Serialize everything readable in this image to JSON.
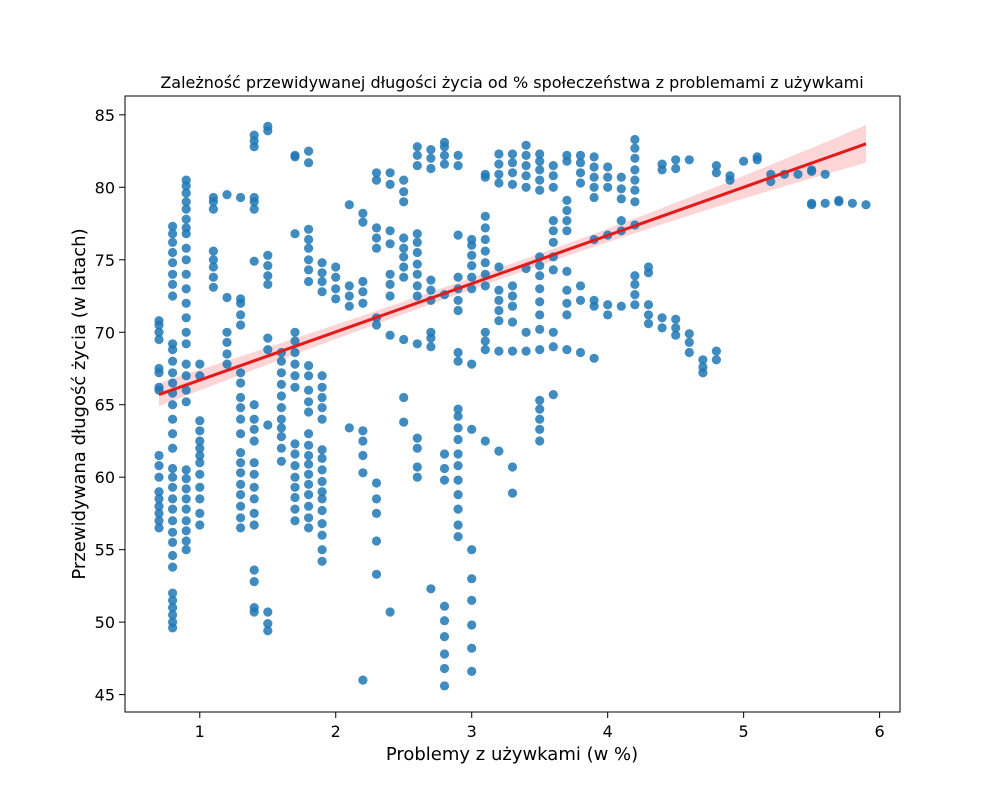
{
  "chart_data": {
    "type": "scatter",
    "title": "Zależność przewidywanej długości życia od % społeczeństwa z problemami z używkami",
    "xlabel": "Problemy z używkami (w %)",
    "ylabel": "Przewidywana długość życia (w latach)",
    "xlim": [
      0.45,
      6.15
    ],
    "ylim": [
      43.8,
      86.3
    ],
    "xticks": [
      1,
      2,
      3,
      4,
      5,
      6
    ],
    "yticks": [
      45,
      50,
      55,
      60,
      65,
      70,
      75,
      80,
      85
    ],
    "grid": false,
    "colors": {
      "points": "#1f77b4",
      "fit_line": "#e31a1c",
      "ci_band": "#f9b4b4"
    },
    "regression": {
      "x": [
        0.7,
        5.9
      ],
      "y": [
        65.7,
        83.0
      ],
      "ci_halfwidth_ends": [
        0.8,
        1.3
      ],
      "ci_halfwidth_mid": 0.4
    },
    "point_groups": [
      {
        "x": 0.7,
        "y": [
          56.5,
          57.0,
          57.5,
          58.0,
          58.5,
          59.0,
          60.0,
          60.8,
          61.5,
          66.0,
          66.2,
          67.2,
          67.5,
          69.5,
          70.0,
          70.5,
          70.8
        ]
      },
      {
        "x": 0.8,
        "y": [
          49.6,
          50.0,
          50.5,
          51.0,
          51.5,
          52.0,
          53.8,
          54.6,
          55.5,
          56.2,
          57.0,
          57.8,
          58.5,
          59.3,
          60.0,
          60.6,
          62.0,
          63.0,
          64.0,
          65.0,
          65.8,
          66.5,
          67.2,
          68.0,
          68.8,
          69.2,
          72.5,
          73.3,
          74.0,
          74.8,
          75.5,
          76.2,
          76.8,
          77.3
        ]
      },
      {
        "x": 0.9,
        "y": [
          55.0,
          55.6,
          56.3,
          57.0,
          57.8,
          58.5,
          59.2,
          59.9,
          60.5,
          65.2,
          66.0,
          67.0,
          67.8,
          69.2,
          70.0,
          71.0,
          72.0,
          73.0,
          74.0,
          75.0,
          75.8,
          76.8,
          77.2,
          77.8,
          78.5,
          79.0,
          79.6,
          80.1,
          80.5
        ]
      },
      {
        "x": 1.0,
        "y": [
          56.7,
          57.5,
          58.5,
          59.3,
          60.2,
          61.0,
          61.5,
          62.0,
          62.5,
          63.2,
          63.9,
          67.0,
          67.8
        ]
      },
      {
        "x": 1.1,
        "y": [
          73.1,
          73.8,
          74.5,
          75.0,
          75.6,
          78.5,
          79.0,
          79.3
        ]
      },
      {
        "x": 1.2,
        "y": [
          67.8,
          68.5,
          69.3,
          70.0,
          72.4,
          79.5
        ]
      },
      {
        "x": 1.3,
        "y": [
          56.5,
          57.2,
          58.0,
          58.8,
          59.5,
          60.3,
          61.0,
          61.7,
          63.0,
          64.0,
          64.8,
          65.5,
          66.5,
          67.2,
          70.5,
          71.2,
          72.0,
          72.3,
          79.3
        ]
      },
      {
        "x": 1.4,
        "y": [
          50.7,
          51.0,
          52.8,
          53.6,
          56.7,
          57.5,
          58.5,
          59.3,
          60.2,
          61.0,
          62.5,
          63.3,
          64.0,
          65.0,
          74.9,
          78.5,
          79.0,
          79.3,
          82.8,
          83.2,
          83.6
        ]
      },
      {
        "x": 1.5,
        "y": [
          49.4,
          49.9,
          50.7,
          63.6,
          68.8,
          69.6,
          73.3,
          73.9,
          74.6,
          75.3,
          83.9,
          84.2
        ]
      },
      {
        "x": 1.6,
        "y": [
          61.1,
          62.0,
          62.8,
          63.4,
          64.0,
          64.8,
          65.6,
          66.4,
          67.2,
          68.0,
          68.6
        ]
      },
      {
        "x": 1.7,
        "y": [
          57.0,
          57.8,
          58.6,
          59.3,
          60.0,
          60.8,
          61.6,
          62.3,
          66.2,
          67.0,
          67.8,
          68.6,
          69.4,
          70.0,
          76.8,
          82.1,
          82.2
        ]
      },
      {
        "x": 1.8,
        "y": [
          56.5,
          57.2,
          58.0,
          58.8,
          59.5,
          60.2,
          60.9,
          61.5,
          62.2,
          63.0,
          64.5,
          65.2,
          66.0,
          67.0,
          67.7,
          73.5,
          74.3,
          75.0,
          75.8,
          76.4,
          77.1,
          81.7,
          82.5
        ]
      },
      {
        "x": 1.9,
        "y": [
          54.2,
          55.0,
          56.0,
          56.8,
          57.7,
          58.5,
          59.0,
          59.7,
          60.5,
          61.3,
          61.9,
          64.0,
          64.8,
          65.5,
          66.2,
          67.0,
          72.8,
          73.5,
          74.1,
          74.8
        ]
      },
      {
        "x": 2.0,
        "y": [
          72.3,
          73.0,
          73.8,
          74.5
        ]
      },
      {
        "x": 2.1,
        "y": [
          63.4,
          71.8,
          72.5,
          73.2,
          78.8
        ]
      },
      {
        "x": 2.2,
        "y": [
          46.0,
          60.3,
          61.5,
          62.5,
          63.2,
          72.0,
          72.8,
          73.5,
          77.6,
          78.2
        ]
      },
      {
        "x": 2.3,
        "y": [
          53.3,
          55.6,
          57.5,
          58.5,
          59.6,
          70.5,
          71.0,
          75.8,
          76.5,
          77.2,
          80.5,
          81.0
        ]
      },
      {
        "x": 2.4,
        "y": [
          50.7,
          69.8,
          72.5,
          73.3,
          74.0,
          76.1,
          77.0,
          80.2,
          81.0
        ]
      },
      {
        "x": 2.5,
        "y": [
          63.8,
          65.5,
          69.5,
          73.8,
          74.5,
          75.2,
          75.8,
          76.5,
          79.0,
          79.7,
          80.5
        ]
      },
      {
        "x": 2.6,
        "y": [
          60.0,
          60.7,
          62.0,
          62.7,
          69.2,
          72.5,
          73.2,
          74.0,
          74.7,
          75.5,
          76.2,
          76.8,
          81.5,
          82.2,
          82.8
        ]
      },
      {
        "x": 2.7,
        "y": [
          52.3,
          69.0,
          69.6,
          70.0,
          72.2,
          72.9,
          73.6,
          81.3,
          82.0,
          82.6
        ]
      },
      {
        "x": 2.8,
        "y": [
          45.6,
          46.8,
          47.8,
          49.0,
          50.1,
          51.1,
          59.8,
          60.6,
          61.6,
          72.6,
          81.6,
          82.2,
          82.8,
          83.1
        ]
      },
      {
        "x": 2.9,
        "y": [
          55.9,
          56.7,
          57.8,
          58.8,
          59.8,
          60.8,
          61.6,
          62.6,
          63.4,
          64.2,
          64.7,
          68.0,
          68.6,
          71.5,
          72.2,
          73.0,
          73.8,
          76.7,
          81.5,
          82.2
        ]
      },
      {
        "x": 3.0,
        "y": [
          46.6,
          48.2,
          49.8,
          51.5,
          53.0,
          55.0,
          63.3,
          67.8,
          73.0,
          73.8,
          74.6,
          75.3,
          76.0,
          76.4
        ]
      },
      {
        "x": 3.1,
        "y": [
          62.5,
          68.8,
          69.4,
          70.0,
          73.2,
          74.0,
          74.8,
          75.6,
          76.4,
          77.2,
          78.0,
          80.7,
          80.9
        ]
      },
      {
        "x": 3.2,
        "y": [
          61.8,
          68.7,
          70.8,
          71.5,
          72.2,
          72.9,
          74.5,
          80.3,
          80.9,
          81.6,
          82.3
        ]
      },
      {
        "x": 3.3,
        "y": [
          58.9,
          60.7,
          68.7,
          70.7,
          71.8,
          72.5,
          73.2,
          80.2,
          81.0,
          81.7,
          82.3
        ]
      },
      {
        "x": 3.4,
        "y": [
          68.7,
          70.0,
          74.4,
          80.0,
          80.8,
          81.5,
          82.2,
          82.9
        ]
      },
      {
        "x": 3.5,
        "y": [
          62.5,
          63.3,
          64.0,
          64.7,
          65.3,
          68.8,
          70.2,
          71.2,
          72.1,
          73.0,
          73.9,
          74.6,
          75.2,
          79.8,
          80.5,
          81.2,
          81.8,
          82.3
        ]
      },
      {
        "x": 3.6,
        "y": [
          65.7,
          69.0,
          70.0,
          74.3,
          75.2,
          76.2,
          77.0,
          77.7,
          80.0,
          80.8,
          81.5
        ]
      },
      {
        "x": 3.7,
        "y": [
          68.8,
          71.2,
          72.0,
          72.9,
          74.2,
          77.0,
          77.7,
          78.4,
          79.1,
          81.8,
          82.2
        ]
      },
      {
        "x": 3.8,
        "y": [
          68.6,
          72.2,
          73.2,
          80.3,
          81.0,
          81.7,
          82.2
        ]
      },
      {
        "x": 3.9,
        "y": [
          68.2,
          71.8,
          72.2,
          76.4,
          79.3,
          80.0,
          80.7,
          81.4,
          82.1
        ]
      },
      {
        "x": 4.0,
        "y": [
          71.2,
          71.9,
          76.7,
          80.0,
          80.7,
          81.4
        ]
      },
      {
        "x": 4.1,
        "y": [
          71.8,
          77.0,
          77.7,
          79.2,
          79.9,
          80.7
        ]
      },
      {
        "x": 4.2,
        "y": [
          71.9,
          72.6,
          73.3,
          73.9,
          77.4,
          79.0,
          79.8,
          80.5,
          81.2,
          82.0,
          82.7,
          83.3
        ]
      },
      {
        "x": 4.3,
        "y": [
          70.6,
          71.2,
          71.9,
          74.1,
          74.5
        ]
      },
      {
        "x": 4.4,
        "y": [
          70.3,
          71.0,
          81.2,
          81.6
        ]
      },
      {
        "x": 4.5,
        "y": [
          69.8,
          70.3,
          70.9,
          81.3,
          81.9
        ]
      },
      {
        "x": 4.6,
        "y": [
          68.6,
          69.3,
          69.9,
          81.9
        ]
      },
      {
        "x": 4.7,
        "y": [
          67.2,
          67.6,
          68.1
        ]
      },
      {
        "x": 4.8,
        "y": [
          68.1,
          68.7,
          81.0,
          81.5
        ]
      },
      {
        "x": 4.9,
        "y": [
          80.5,
          80.8
        ]
      },
      {
        "x": 5.0,
        "y": [
          81.8
        ]
      },
      {
        "x": 5.1,
        "y": [
          81.9,
          82.1
        ]
      },
      {
        "x": 5.2,
        "y": [
          80.4,
          80.9
        ]
      },
      {
        "x": 5.3,
        "y": [
          80.9
        ]
      },
      {
        "x": 5.4,
        "y": [
          80.9
        ]
      },
      {
        "x": 5.5,
        "y": [
          78.8,
          78.9,
          81.1,
          81.2
        ]
      },
      {
        "x": 5.6,
        "y": [
          78.9,
          80.9
        ]
      },
      {
        "x": 5.7,
        "y": [
          79.0,
          79.1
        ]
      },
      {
        "x": 5.8,
        "y": [
          78.9
        ]
      },
      {
        "x": 5.9,
        "y": [
          78.8
        ]
      }
    ]
  }
}
